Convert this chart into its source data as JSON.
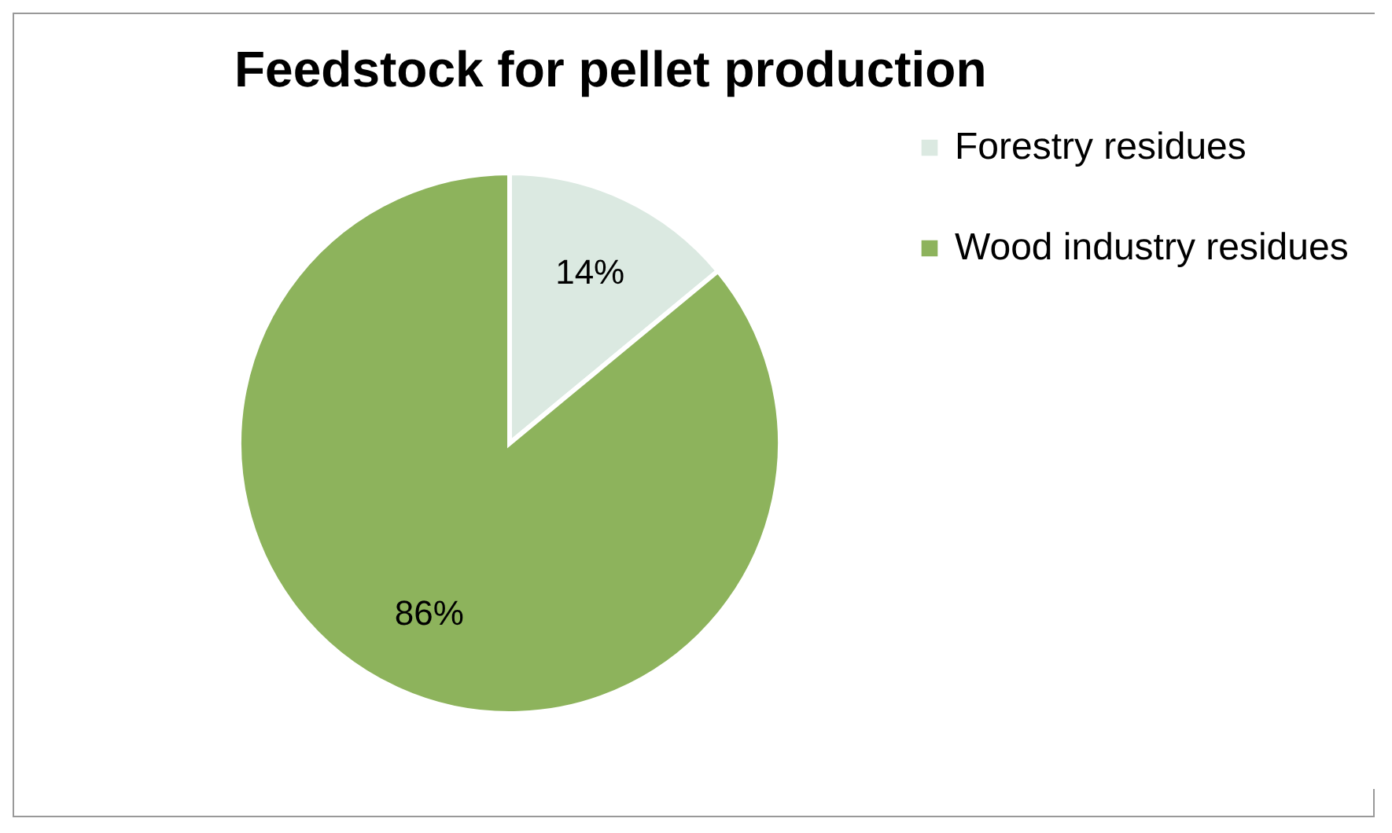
{
  "chart_data": {
    "type": "pie",
    "title": "Feedstock for pellet production",
    "categories": [
      "Forestry residues",
      "Wood industry residues"
    ],
    "values": [
      14,
      86
    ],
    "colors": [
      "#dbe9e1",
      "#8db35c"
    ],
    "value_labels": [
      "14%",
      "86%"
    ],
    "legend": "right"
  }
}
